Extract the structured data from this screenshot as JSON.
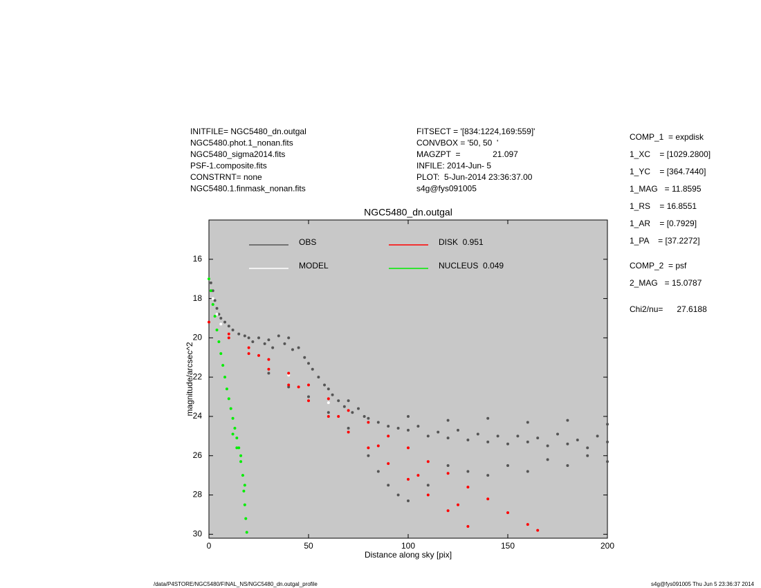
{
  "chart_data": {
    "type": "scatter",
    "title": "NGC5480_dn.outgal",
    "x_label": "Distance along sky [pix]",
    "y_label": "magnitude/arcsec^2",
    "info_left": [
      "INITFILE= NGC5480_dn.outgal",
      "NGC5480.phot.1_nonan.fits",
      "NGC5480_sigma2014.fits",
      "PSF-1.composite.fits",
      "CONSTRNT= none",
      "NGC5480.1.finmask_nonan.fits"
    ],
    "info_middle": [
      "FITSECT = '[834:1224,169:559]'",
      "CONVBOX = '50, 50  '",
      "MAGZPT  =              21.097",
      "INFILE: 2014-Jun- 5",
      "PLOT:  5-Jun-2014 23:36:37.00",
      "s4g@fys091005"
    ],
    "info_right": [
      "COMP_1  = expdisk",
      "1_XC    = [1029.2800]",
      "1_YC    = [364.7440]",
      "1_MAG   = 11.8595",
      "1_RS    = 16.8551",
      "1_AR    = [0.7929]",
      "1_PA    = [37.2272]",
      "COMP_2  = psf",
      "2_MAG   = 15.0787",
      "Chi2/nu=      27.6188"
    ],
    "footer_left": "/data/P4STORE/NGC5480/FINAL_NS/NGC5480_dn.outgal_profile",
    "footer_right": "s4g@fys091005  Thu Jun  5 23:36:37 2014",
    "xlim": [
      0,
      200
    ],
    "xticks": [
      0,
      50,
      100,
      150,
      200
    ],
    "ylim": [
      30.2,
      14.0
    ],
    "yticks": [
      16,
      18,
      20,
      22,
      24,
      26,
      28,
      30
    ],
    "background": "#c8c8c8",
    "series": [
      {
        "name": "OBS",
        "color": "#555555",
        "x": [
          1,
          2,
          3,
          4,
          5,
          6,
          8,
          10,
          12,
          15,
          18,
          20,
          22,
          25,
          28,
          30,
          32,
          35,
          38,
          40,
          42,
          45,
          48,
          50,
          52,
          55,
          58,
          60,
          62,
          65,
          68,
          70,
          72,
          75,
          78,
          80,
          85,
          90,
          95,
          100,
          105,
          110,
          115,
          120,
          125,
          130,
          135,
          140,
          145,
          150,
          155,
          160,
          165,
          170,
          175,
          180,
          185,
          190,
          195,
          200,
          30,
          40,
          50,
          60,
          70,
          80,
          85,
          90,
          95,
          100,
          110,
          120,
          130,
          140,
          150,
          160,
          170,
          180,
          190,
          200,
          100,
          120,
          140,
          160,
          180,
          200
        ],
        "values": [
          17.2,
          17.6,
          18.1,
          18.5,
          18.8,
          19.0,
          19.2,
          19.4,
          19.6,
          19.8,
          19.9,
          20.0,
          20.2,
          20.0,
          20.3,
          20.1,
          20.5,
          19.9,
          20.3,
          20.0,
          20.6,
          20.5,
          21.0,
          21.3,
          21.6,
          22.0,
          22.4,
          22.6,
          22.9,
          23.2,
          23.5,
          23.2,
          23.8,
          23.6,
          24.0,
          24.1,
          24.3,
          24.5,
          24.6,
          24.7,
          24.5,
          25.0,
          24.8,
          25.1,
          24.7,
          25.2,
          24.9,
          25.3,
          25.0,
          25.4,
          25.0,
          25.3,
          25.1,
          25.5,
          24.9,
          25.4,
          25.2,
          25.6,
          25.0,
          25.3,
          21.8,
          22.5,
          23.0,
          23.8,
          24.6,
          26.0,
          26.8,
          27.5,
          28.0,
          28.3,
          27.5,
          26.5,
          26.8,
          27.0,
          26.5,
          26.8,
          26.2,
          26.5,
          26.0,
          26.3,
          24.0,
          24.2,
          24.1,
          24.3,
          24.2,
          24.4
        ]
      },
      {
        "name": "MODEL",
        "color": "#ffffff",
        "x": [
          0,
          2,
          4,
          6,
          10,
          20,
          40,
          60
        ],
        "values": [
          17.0,
          18.0,
          18.8,
          19.3,
          19.8,
          20.5,
          21.9,
          23.3
        ]
      },
      {
        "name": "DISK  0.951",
        "color": "#ff0000",
        "x": [
          0,
          10,
          10,
          20,
          20,
          30,
          30,
          40,
          40,
          50,
          50,
          60,
          60,
          70,
          70,
          80,
          80,
          90,
          90,
          100,
          100,
          110,
          110,
          120,
          120,
          130,
          130,
          140,
          150,
          160,
          165,
          25,
          45,
          65,
          85,
          105,
          125
        ],
        "values": [
          19.2,
          19.8,
          20.0,
          20.5,
          20.8,
          21.1,
          21.6,
          21.8,
          22.4,
          22.4,
          23.2,
          23.1,
          24.0,
          23.7,
          24.8,
          24.3,
          25.6,
          25.0,
          26.4,
          25.6,
          27.2,
          26.3,
          28.0,
          26.9,
          28.8,
          27.6,
          29.6,
          28.2,
          28.9,
          29.5,
          29.8,
          20.9,
          22.5,
          24.0,
          25.5,
          27.0,
          28.5
        ]
      },
      {
        "name": "NUCLEUS  0.049",
        "color": "#00ee00",
        "x": [
          0,
          1,
          2,
          3,
          4,
          5,
          6,
          7,
          8,
          9,
          10,
          11,
          12,
          13,
          14,
          15,
          16,
          17,
          17.5,
          18,
          18.5,
          19,
          12,
          14,
          16,
          18
        ],
        "values": [
          17.0,
          17.6,
          18.3,
          18.9,
          19.6,
          20.2,
          20.8,
          21.4,
          22.0,
          22.6,
          23.1,
          23.6,
          24.1,
          24.6,
          25.1,
          25.6,
          26.3,
          27.0,
          27.8,
          28.5,
          29.2,
          29.9,
          24.9,
          25.6,
          26.0,
          27.5
        ]
      }
    ]
  }
}
